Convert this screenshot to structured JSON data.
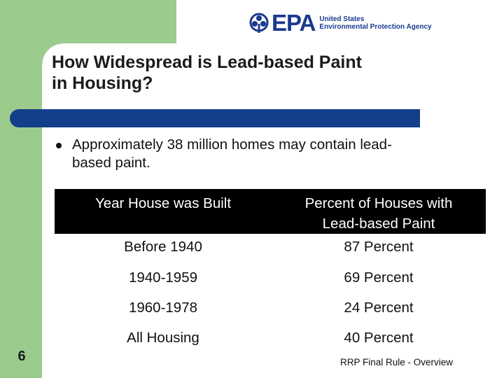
{
  "header": {
    "logo_word": "EPA",
    "agency_line1": "United States",
    "agency_line2": "Environmental Protection Agency"
  },
  "slide": {
    "title_line1": "How Widespread is Lead-based Paint",
    "title_line2": "in Housing?",
    "bullet_line1": "Approximately 38 million homes may contain lead-",
    "bullet_line2": "based paint."
  },
  "table": {
    "headers": [
      "Year House was Built",
      "Percent of Houses with",
      "Lead-based Paint"
    ],
    "rows": [
      {
        "year": "Before 1940",
        "percent": "87 Percent"
      },
      {
        "year": "1940-1959",
        "percent": "69 Percent"
      },
      {
        "year": "1960-1978",
        "percent": "24 Percent"
      },
      {
        "year": "All Housing",
        "percent": "40 Percent"
      }
    ]
  },
  "footer": {
    "page_number": "6",
    "caption": "RRP Final Rule - Overview"
  },
  "colors": {
    "accent_green": "#9ccb8e",
    "rule_blue": "#123e8a",
    "epa_blue": "#1a3a8f"
  }
}
